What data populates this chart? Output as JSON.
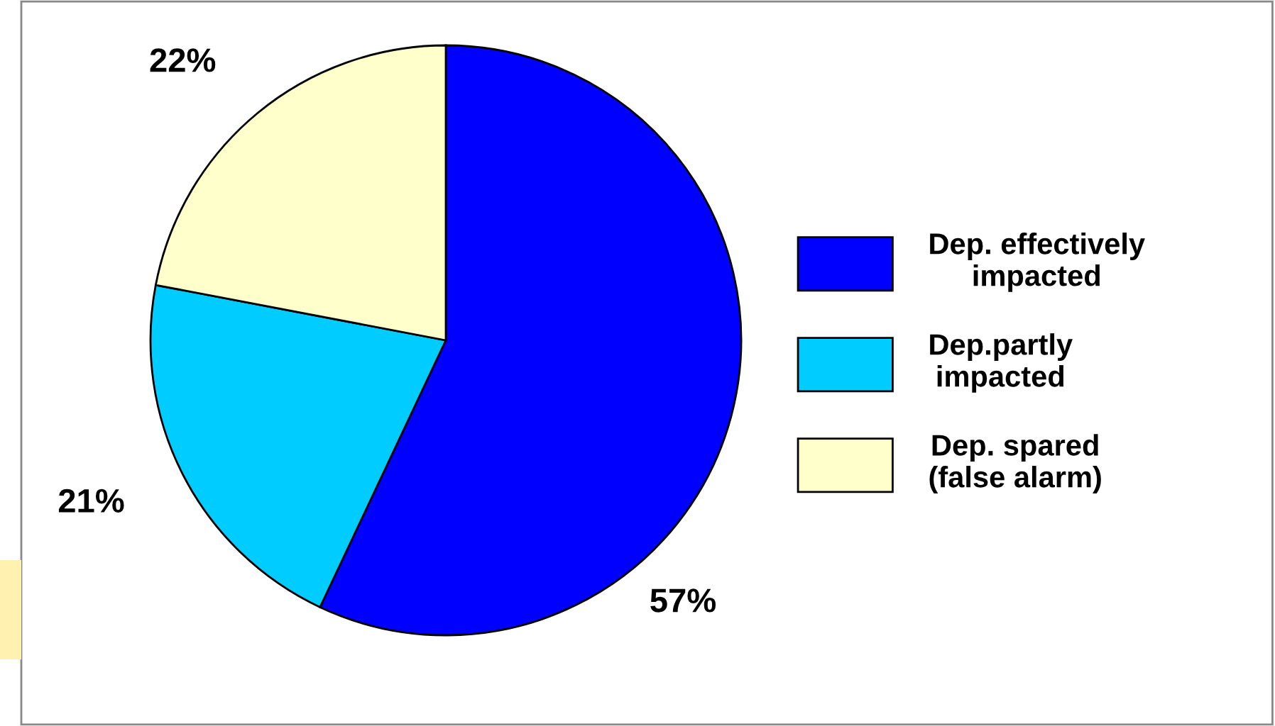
{
  "chart_data": {
    "type": "pie",
    "categories": [
      "Dep. effectively\nimpacted",
      "Dep.partly\nimpacted",
      "Dep. spared\n(false alarm)"
    ],
    "values": [
      57,
      21,
      22
    ],
    "colors": [
      "#0000ff",
      "#00ccff",
      "#ffffcc"
    ],
    "value_labels": [
      "57%",
      "21%",
      "22%"
    ],
    "legend": "right"
  }
}
